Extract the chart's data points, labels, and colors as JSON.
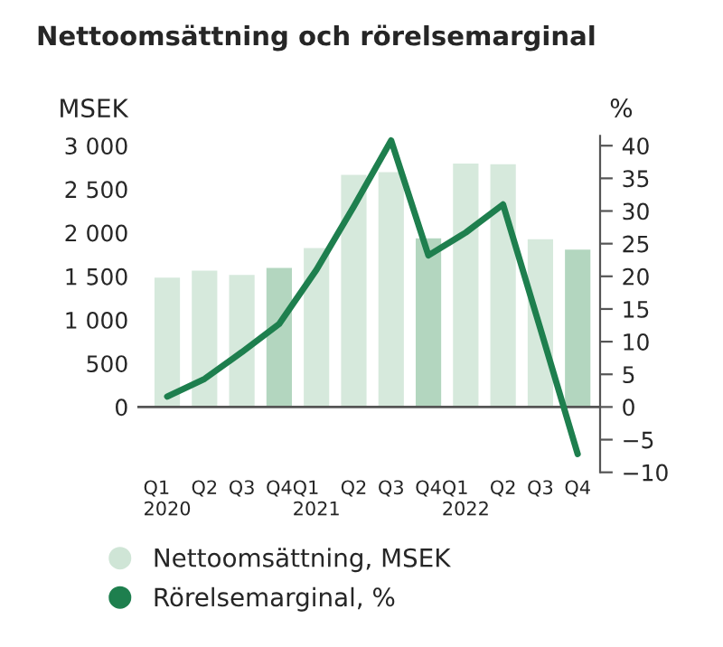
{
  "chart_data": {
    "type": "bar",
    "title": "Nettoomsättning och rörelsemarginal",
    "categories": [
      "Q1\n2020",
      "Q2",
      "Q3",
      "Q4",
      "Q1\n2021",
      "Q2",
      "Q3",
      "Q4",
      "Q1\n2022",
      "Q2",
      "Q3",
      "Q4"
    ],
    "series": [
      {
        "name": "Nettoomsättning, MSEK",
        "color": "#cfe5d6",
        "colors": [
          "#d6e9dc",
          "#d6e9dc",
          "#d6e9dc",
          "#b3d6bf",
          "#d6e9dc",
          "#d6e9dc",
          "#d6e9dc",
          "#b3d6bf",
          "#d6e9dc",
          "#d6e9dc",
          "#d6e9dc",
          "#b3d6bf"
        ],
        "values": [
          1500,
          1580,
          1530,
          1610,
          1840,
          2680,
          2710,
          1950,
          2810,
          2800,
          1940,
          1820
        ]
      },
      {
        "name": "Rörelsemarginal, %",
        "type": "line",
        "axis": "y2",
        "color": "#1e7f4e",
        "values": [
          1.6,
          4.3,
          8.4,
          12.7,
          21,
          30.7,
          40.8,
          23.2,
          26.7,
          31,
          12,
          -7.2
        ]
      }
    ],
    "ylabel": "MSEK",
    "y2label": "%",
    "ylim": [
      -750,
      3112.5
    ],
    "yticks": [
      0,
      500,
      {
        "value": 1000,
        "label": "1 000"
      },
      {
        "value": 1500,
        "label": "1 500"
      },
      {
        "value": 2000,
        "label": "2 000"
      },
      {
        "value": 2500,
        "label": "2 500"
      },
      {
        "value": 3000,
        "label": "3 000"
      }
    ],
    "y2lim": [
      -10,
      41.5
    ],
    "y2ticks": [
      {
        "value": -10,
        "label": "−10"
      },
      {
        "value": -5,
        "label": "−5"
      },
      0,
      5,
      10,
      15,
      20,
      25,
      30,
      35,
      40
    ],
    "ref_lines": [
      {
        "axis": "y",
        "value": 0,
        "color": "#555555"
      }
    ],
    "grid": false,
    "legend": "bottom",
    "marker": "none",
    "line_style": "solid"
  }
}
